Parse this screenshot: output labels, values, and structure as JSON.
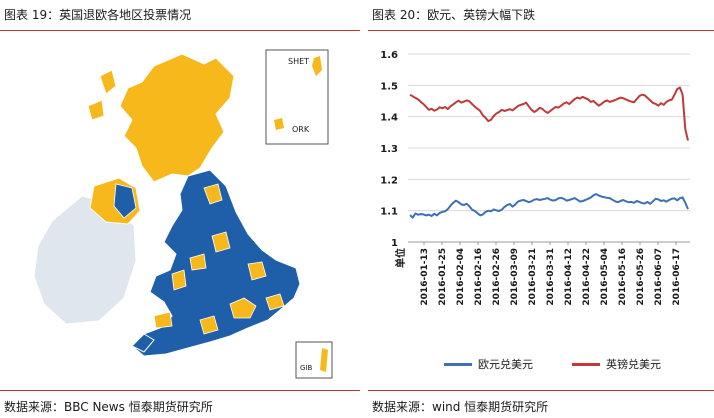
{
  "left_panel": {
    "title": "图表 19：英国退欧各地区投票情况",
    "source": "数据来源：BBC News    恒泰期货研究所",
    "map": {
      "inset_labels": [
        "SHET",
        "ORK",
        "GIB"
      ],
      "colors": {
        "leave": "#f7b81c",
        "remain": "#1f5ea8",
        "ireland": "#dfe6ee",
        "border": "#ffffff"
      }
    }
  },
  "right_panel": {
    "title": "图表 20：欧元、英镑大幅下跌",
    "source": "数据来源：wind    恒泰期货研究所",
    "unit_label": "单位",
    "chart_data": {
      "type": "line",
      "x_labels": [
        "2016-01-13",
        "2016-01-25",
        "2016-02-04",
        "2016-02-16",
        "2016-02-26",
        "2016-03-09",
        "2016-03-21",
        "2016-03-31",
        "2016-04-12",
        "2016-04-22",
        "2016-05-04",
        "2016-05-16",
        "2016-05-26",
        "2016-06-07",
        "2016-06-17"
      ],
      "ylim": [
        1,
        1.6
      ],
      "y_ticks": [
        "1",
        "1.1",
        "1.2",
        "1.3",
        "1.4",
        "1.5",
        "1.6"
      ],
      "gridlines": true,
      "legend_position": "bottom",
      "series": [
        {
          "name": "欧元兑美元",
          "color": "#3f6fb5",
          "values": [
            1.086,
            1.078,
            1.091,
            1.087,
            1.089,
            1.088,
            1.085,
            1.087,
            1.083,
            1.09,
            1.085,
            1.093,
            1.096,
            1.098,
            1.105,
            1.116,
            1.125,
            1.132,
            1.127,
            1.12,
            1.118,
            1.122,
            1.114,
            1.103,
            1.099,
            1.092,
            1.085,
            1.088,
            1.096,
            1.1,
            1.098,
            1.104,
            1.101,
            1.099,
            1.103,
            1.112,
            1.118,
            1.121,
            1.113,
            1.12,
            1.129,
            1.132,
            1.134,
            1.131,
            1.127,
            1.13,
            1.135,
            1.137,
            1.134,
            1.136,
            1.138,
            1.14,
            1.135,
            1.132,
            1.134,
            1.139,
            1.141,
            1.138,
            1.132,
            1.134,
            1.137,
            1.14,
            1.135,
            1.129,
            1.131,
            1.134,
            1.138,
            1.142,
            1.149,
            1.153,
            1.148,
            1.145,
            1.143,
            1.141,
            1.14,
            1.135,
            1.13,
            1.127,
            1.131,
            1.134,
            1.13,
            1.127,
            1.128,
            1.125,
            1.131,
            1.128,
            1.124,
            1.123,
            1.128,
            1.122,
            1.13,
            1.138,
            1.136,
            1.131,
            1.133,
            1.129,
            1.134,
            1.138,
            1.139,
            1.133,
            1.14,
            1.142,
            1.125,
            1.105
          ]
        },
        {
          "name": "英镑兑美元",
          "color": "#c0393b",
          "values": [
            1.47,
            1.465,
            1.46,
            1.455,
            1.447,
            1.44,
            1.431,
            1.422,
            1.425,
            1.419,
            1.423,
            1.43,
            1.427,
            1.431,
            1.424,
            1.433,
            1.439,
            1.446,
            1.451,
            1.445,
            1.448,
            1.452,
            1.449,
            1.44,
            1.432,
            1.425,
            1.418,
            1.404,
            1.396,
            1.386,
            1.39,
            1.402,
            1.41,
            1.415,
            1.422,
            1.418,
            1.421,
            1.424,
            1.42,
            1.427,
            1.434,
            1.438,
            1.44,
            1.445,
            1.433,
            1.422,
            1.415,
            1.42,
            1.428,
            1.425,
            1.417,
            1.412,
            1.418,
            1.425,
            1.431,
            1.429,
            1.435,
            1.442,
            1.446,
            1.44,
            1.448,
            1.456,
            1.461,
            1.458,
            1.463,
            1.459,
            1.455,
            1.447,
            1.45,
            1.442,
            1.435,
            1.441,
            1.448,
            1.452,
            1.447,
            1.45,
            1.453,
            1.457,
            1.461,
            1.459,
            1.455,
            1.451,
            1.448,
            1.446,
            1.456,
            1.466,
            1.47,
            1.468,
            1.46,
            1.452,
            1.444,
            1.441,
            1.435,
            1.443,
            1.438,
            1.447,
            1.452,
            1.454,
            1.47,
            1.488,
            1.493,
            1.47,
            1.36,
            1.324
          ]
        }
      ]
    }
  }
}
